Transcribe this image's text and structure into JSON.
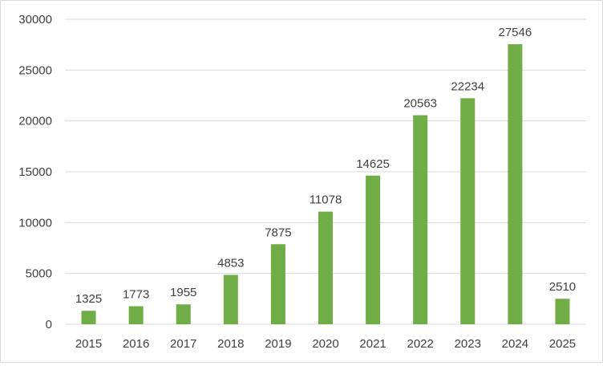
{
  "chart_data": {
    "type": "bar",
    "title": "",
    "xlabel": "",
    "ylabel": "",
    "categories": [
      "2015",
      "2016",
      "2017",
      "2018",
      "2019",
      "2020",
      "2021",
      "2022",
      "2023",
      "2024",
      "2025"
    ],
    "values": [
      1325,
      1773,
      1955,
      4853,
      7875,
      11078,
      14625,
      20563,
      22234,
      27546,
      2510
    ],
    "ylim": [
      0,
      30000
    ],
    "yticks": [
      0,
      5000,
      10000,
      15000,
      20000,
      25000,
      30000
    ],
    "grid": true,
    "legend": "none",
    "bar_color": "#70ad47",
    "grid_color": "#d9d9d9",
    "data_labels": true
  }
}
